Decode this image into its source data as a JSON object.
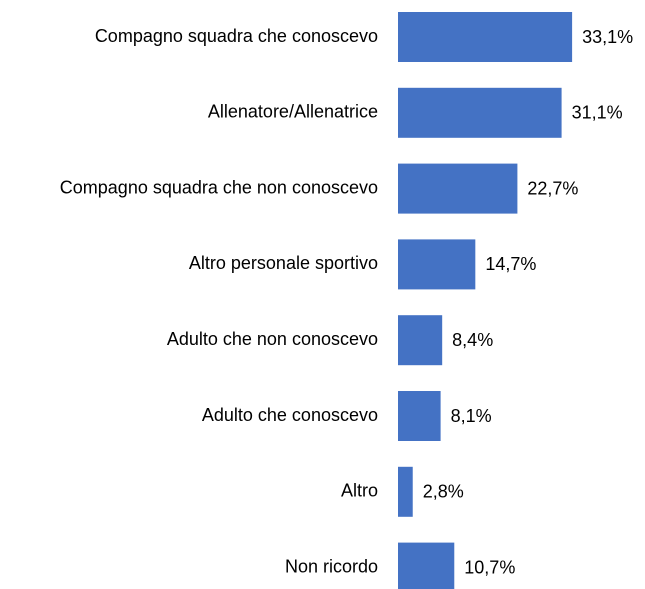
{
  "chart_data": {
    "type": "bar",
    "orientation": "horizontal",
    "color": "#4472c4",
    "categories": [
      "Compagno squadra che conoscevo",
      "Allenatore/Allenatrice",
      "Compagno squadra che non conoscevo",
      "Altro personale sportivo",
      "Adulto che non conoscevo",
      "Adulto che conoscevo",
      "Altro",
      "Non ricordo"
    ],
    "values": [
      33.1,
      31.1,
      22.7,
      14.7,
      8.4,
      8.1,
      2.8,
      10.7
    ],
    "value_labels": [
      "33,1%",
      "31,1%",
      "22,7%",
      "14,7%",
      "8,4%",
      "8,1%",
      "2,8%",
      "10,7%"
    ]
  }
}
